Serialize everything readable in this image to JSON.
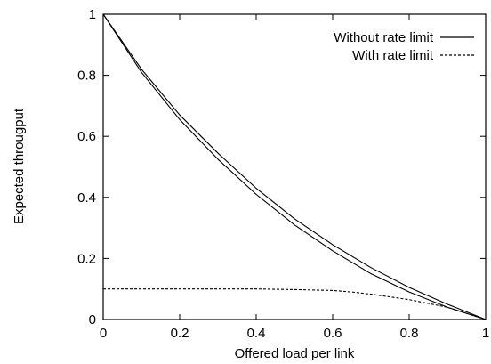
{
  "chart_data": {
    "type": "line",
    "title": "",
    "xlabel": "Offered load per link",
    "ylabel": "Expected througput",
    "xlim": [
      0,
      1
    ],
    "ylim": [
      0,
      1
    ],
    "xticks": [
      "0",
      "0.2",
      "0.4",
      "0.6",
      "0.8",
      "1"
    ],
    "yticks": [
      "0",
      "0.2",
      "0.4",
      "0.6",
      "0.8",
      "1"
    ],
    "grid": false,
    "legend_position": "top-right",
    "legend": [
      {
        "label": "Without rate limit",
        "style": "solid",
        "color": "#000000"
      },
      {
        "label": "With rate limit",
        "style": "dashed",
        "color": "#000000"
      }
    ],
    "series": [
      {
        "name": "Without rate limit",
        "style": "solid",
        "x": [
          0,
          0.1,
          0.2,
          0.3,
          0.4,
          0.5,
          0.6,
          0.7,
          0.8,
          0.9,
          1.0
        ],
        "y": [
          1.0,
          0.82,
          0.67,
          0.545,
          0.43,
          0.33,
          0.245,
          0.17,
          0.105,
          0.05,
          0.0
        ]
      },
      {
        "name": "",
        "style": "solid",
        "x": [
          0,
          0.1,
          0.2,
          0.3,
          0.4,
          0.5,
          0.6,
          0.7,
          0.8,
          0.9,
          1.0
        ],
        "y": [
          1.0,
          0.81,
          0.655,
          0.525,
          0.41,
          0.31,
          0.225,
          0.15,
          0.09,
          0.04,
          0.0
        ]
      },
      {
        "name": "With rate limit",
        "style": "dashed",
        "x": [
          0,
          0.1,
          0.2,
          0.3,
          0.4,
          0.5,
          0.6,
          0.65,
          0.7,
          0.8,
          0.9,
          1.0
        ],
        "y": [
          0.1,
          0.1,
          0.1,
          0.1,
          0.1,
          0.098,
          0.095,
          0.09,
          0.083,
          0.065,
          0.04,
          0.0
        ]
      }
    ]
  }
}
